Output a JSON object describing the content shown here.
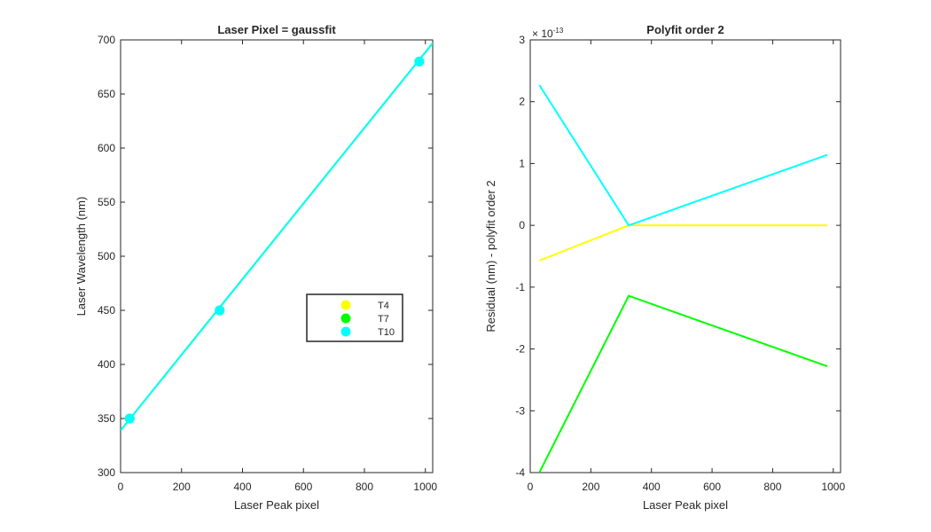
{
  "chart_data": [
    {
      "type": "line",
      "title": "Laser Pixel = gaussfit",
      "xlabel": "Laser Peak pixel",
      "ylabel": "Laser Wavelength (nm)",
      "xlim": [
        0,
        1024
      ],
      "ylim": [
        300,
        700
      ],
      "xticks": [
        0,
        200,
        400,
        600,
        800,
        1000
      ],
      "yticks": [
        300,
        350,
        400,
        450,
        500,
        550,
        600,
        650,
        700
      ],
      "xtick_labels": [
        "0",
        "200",
        "400",
        "600",
        "800",
        "1000"
      ],
      "ytick_labels": [
        "300",
        "350",
        "400",
        "450",
        "500",
        "550",
        "600",
        "650",
        "700"
      ],
      "series": [
        {
          "name": "T4",
          "color": "#ffff00",
          "marker_x": [
            30,
            325,
            980
          ],
          "marker_y": [
            350,
            450,
            680
          ],
          "line_x": [
            0,
            1024
          ],
          "line_y": [
            339,
            697
          ]
        },
        {
          "name": "T7",
          "color": "#00ff00",
          "marker_x": [
            30,
            325,
            980
          ],
          "marker_y": [
            350,
            450,
            680
          ],
          "line_x": [
            0,
            1024
          ],
          "line_y": [
            339,
            697
          ]
        },
        {
          "name": "T10",
          "color": "#00ffff",
          "marker_x": [
            30,
            325,
            980
          ],
          "marker_y": [
            350,
            450,
            680
          ],
          "line_x": [
            0,
            1024
          ],
          "line_y": [
            339,
            697
          ]
        }
      ],
      "legend": {
        "position": "center-right",
        "entries": [
          "T4",
          "T7",
          "T10"
        ]
      }
    },
    {
      "type": "line",
      "title": "Polyfit order 2",
      "xlabel": "Laser Peak pixel",
      "ylabel": "Residual (nm) - polyfit order 2",
      "exponent_label": "× 10",
      "exponent_power": "-13",
      "xlim": [
        0,
        1024
      ],
      "ylim": [
        -4,
        3
      ],
      "xticks": [
        0,
        200,
        400,
        600,
        800,
        1000
      ],
      "yticks": [
        -4,
        -3,
        -2,
        -1,
        0,
        1,
        2,
        3
      ],
      "xtick_labels": [
        "0",
        "200",
        "400",
        "600",
        "800",
        "1000"
      ],
      "ytick_labels": [
        "-4",
        "-3",
        "-2",
        "-1",
        "0",
        "1",
        "2",
        "3"
      ],
      "series": [
        {
          "name": "T4",
          "color": "#ffff00",
          "x": [
            30,
            325,
            980
          ],
          "y": [
            -0.57,
            0,
            0
          ]
        },
        {
          "name": "T7",
          "color": "#00ff00",
          "x": [
            30,
            325,
            980
          ],
          "y": [
            -4.0,
            -1.14,
            -2.28
          ]
        },
        {
          "name": "T10",
          "color": "#00ffff",
          "x": [
            30,
            325,
            980
          ],
          "y": [
            2.27,
            0,
            1.14
          ]
        }
      ]
    }
  ]
}
